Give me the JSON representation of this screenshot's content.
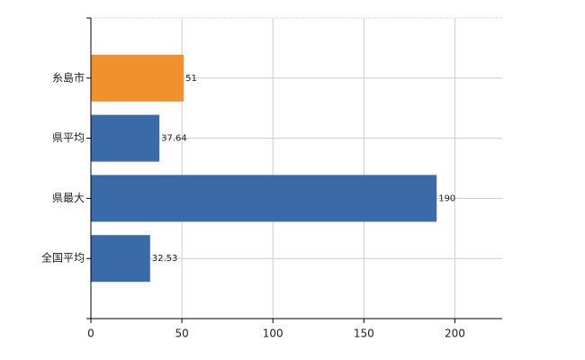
{
  "chart_data": {
    "type": "bar",
    "orientation": "horizontal",
    "categories": [
      "糸島市",
      "県平均",
      "県最大",
      "全国平均"
    ],
    "values": [
      51,
      37.64,
      190,
      32.53
    ],
    "colors": [
      "#f0902f",
      "#3a6aa8",
      "#3a6aa8",
      "#3a6aa8"
    ],
    "xlim": [
      0,
      226
    ],
    "xticks": [
      0,
      50,
      100,
      150,
      200
    ],
    "grid": true
  }
}
